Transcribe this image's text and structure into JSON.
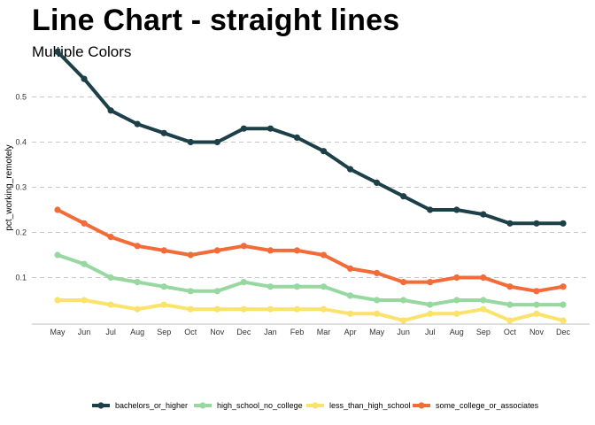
{
  "chart_data": {
    "type": "line",
    "title": "Line Chart - straight lines",
    "subtitle": "Multiple Colors",
    "xlabel": "",
    "ylabel": "pct_working_remotely",
    "categories": [
      "May",
      "Jun",
      "Jul",
      "Aug",
      "Sep",
      "Oct",
      "Nov",
      "Dec",
      "Jan",
      "Feb",
      "Mar",
      "Apr",
      "May",
      "Jun",
      "Jul",
      "Aug",
      "Sep",
      "Oct",
      "Nov",
      "Dec"
    ],
    "y_ticks": [
      "0.1",
      "0.2",
      "0.3",
      "0.4",
      "0.5"
    ],
    "ylim": [
      0.0,
      0.6
    ],
    "grid": "horizontal dashed",
    "legend_position": "bottom",
    "series": [
      {
        "name": "bachelors_or_higher",
        "color": "#1d3f47",
        "values": [
          0.6,
          0.54,
          0.47,
          0.44,
          0.42,
          0.4,
          0.4,
          0.43,
          0.43,
          0.41,
          0.38,
          0.34,
          0.31,
          0.28,
          0.25,
          0.25,
          0.24,
          0.22,
          0.22,
          0.22
        ]
      },
      {
        "name": "high_school_no_college",
        "color": "#96d8a0",
        "values": [
          0.15,
          0.13,
          0.1,
          0.09,
          0.08,
          0.07,
          0.07,
          0.09,
          0.08,
          0.08,
          0.08,
          0.06,
          0.05,
          0.05,
          0.04,
          0.05,
          0.05,
          0.04,
          0.04,
          0.04
        ]
      },
      {
        "name": "less_than_high_school",
        "color": "#fbe26a",
        "values": [
          0.05,
          0.05,
          0.04,
          0.03,
          0.04,
          0.03,
          0.03,
          0.03,
          0.03,
          0.03,
          0.03,
          0.02,
          0.02,
          0.005,
          0.02,
          0.02,
          0.03,
          0.005,
          0.02,
          0.005
        ]
      },
      {
        "name": "some_college_or_associates",
        "color": "#f26b38",
        "values": [
          0.25,
          0.22,
          0.19,
          0.17,
          0.16,
          0.15,
          0.16,
          0.17,
          0.16,
          0.16,
          0.15,
          0.12,
          0.11,
          0.09,
          0.09,
          0.1,
          0.1,
          0.08,
          0.07,
          0.08
        ]
      }
    ]
  }
}
